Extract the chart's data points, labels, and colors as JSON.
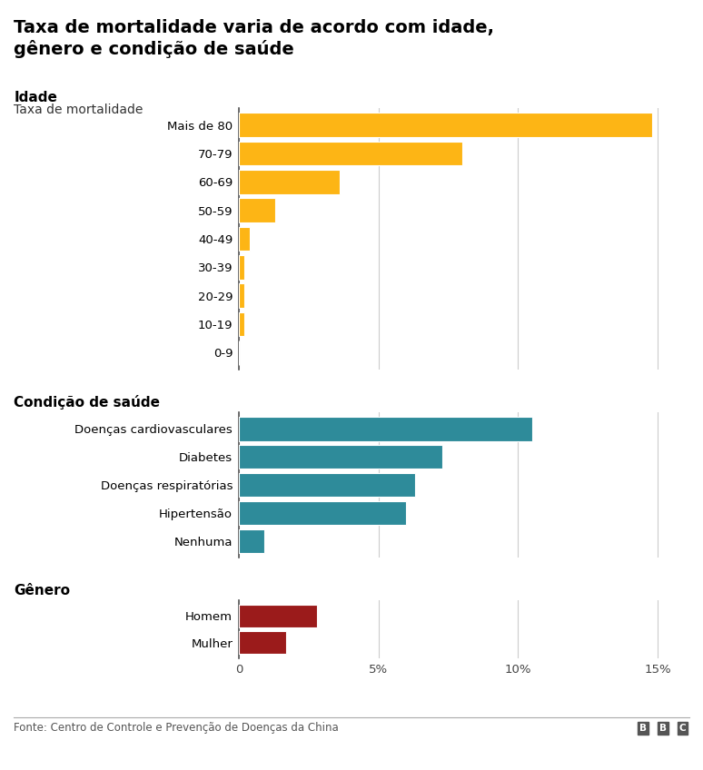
{
  "title": "Taxa de mortalidade varia de acordo com idade,\ngênero e condição de saúde",
  "subtitle": "Taxa de mortalidade",
  "footer": "Fonte: Centro de Controle e Prevenção de Doenças da China",
  "age_labels": [
    "0-9",
    "10-19",
    "20-29",
    "30-39",
    "40-49",
    "50-59",
    "60-69",
    "70-79",
    "Mais de 80"
  ],
  "age_values": [
    0.0,
    0.2,
    0.2,
    0.2,
    0.4,
    1.3,
    3.6,
    8.0,
    14.8
  ],
  "age_color": "#FDB515",
  "health_labels": [
    "Nenhuma",
    "Hipertensão",
    "Doenças respiratórias",
    "Diabetes",
    "Doenças cardiovasculares"
  ],
  "health_values": [
    0.9,
    6.0,
    6.3,
    7.3,
    10.5
  ],
  "health_color": "#2E8B9A",
  "gender_labels": [
    "Mulher",
    "Homem"
  ],
  "gender_values": [
    1.7,
    2.8
  ],
  "gender_color": "#9B1B1B",
  "section_label_idade": "Idade",
  "section_label_health": "Condição de saúde",
  "section_label_gender": "Gênero",
  "xlim": [
    0,
    16
  ],
  "xticks": [
    0,
    5,
    10,
    15
  ],
  "xticklabels": [
    "0",
    "5%",
    "10%",
    "15%"
  ],
  "bg_color": "#FFFFFF",
  "grid_color": "#CCCCCC",
  "bar_height": 0.85
}
